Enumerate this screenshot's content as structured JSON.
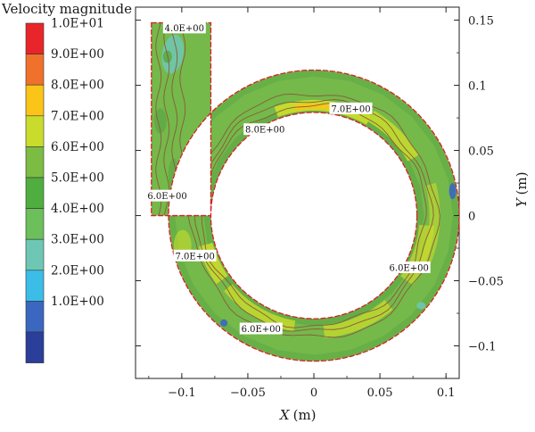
{
  "chart_data": {
    "type": "contour",
    "title": "",
    "xlabel": "X",
    "xunit": "(m)",
    "ylabel": "Y",
    "yunit": "(m)",
    "xlim": [
      -0.135,
      0.11
    ],
    "ylim": [
      -0.125,
      0.16
    ],
    "x_ticks": [
      -0.1,
      -0.05,
      0,
      0.05,
      0.1
    ],
    "x_tick_labels": [
      "−0.1",
      "−0.05",
      "0",
      "0.05",
      "0.1"
    ],
    "y_ticks": [
      0.15,
      0.1,
      0.05,
      0,
      -0.05,
      -0.1
    ],
    "y_tick_labels": [
      "0.15",
      "0.1",
      "0.05",
      "0",
      "−0.05",
      "−0.1"
    ],
    "grid": false,
    "colorbar": {
      "title": "Velocity magnitude",
      "levels": [
        {
          "label": "1.0E+01",
          "color": "#e8262a"
        },
        {
          "label": "9.0E+00",
          "color": "#f0712c"
        },
        {
          "label": "8.0E+00",
          "color": "#fbc418"
        },
        {
          "label": "7.0E+00",
          "color": "#c9dc2c"
        },
        {
          "label": "6.0E+00",
          "color": "#7cbc43"
        },
        {
          "label": "5.0E+00",
          "color": "#4fae3f"
        },
        {
          "label": "4.0E+00",
          "color": "#6cbf5a"
        },
        {
          "label": "3.0E+00",
          "color": "#6ec7b4"
        },
        {
          "label": "2.0E+00",
          "color": "#3bbde8"
        },
        {
          "label": "1.0E+00",
          "color": "#3b67c0"
        },
        {
          "label": "",
          "color": "#2a3e9a"
        }
      ]
    },
    "geometry": {
      "ring_center": [
        0,
        0
      ],
      "ring_inner_radius": 0.078,
      "ring_outer_radius": 0.11,
      "inlet_x_range": [
        -0.123,
        -0.078
      ],
      "inlet_top_y": 0.148
    },
    "contour_labels": [
      {
        "text": "4.0E+00",
        "x": -0.098,
        "y": 0.144
      },
      {
        "text": "7.0E+00",
        "x": 0.028,
        "y": 0.082
      },
      {
        "text": "8.0E+00",
        "x": -0.037,
        "y": 0.066
      },
      {
        "text": "6.0E+00",
        "x": -0.111,
        "y": 0.015
      },
      {
        "text": "7.0E+00",
        "x": -0.09,
        "y": -0.031
      },
      {
        "text": "6.0E+00",
        "x": 0.072,
        "y": -0.04
      },
      {
        "text": "6.0E+00",
        "x": -0.04,
        "y": -0.087
      }
    ]
  }
}
